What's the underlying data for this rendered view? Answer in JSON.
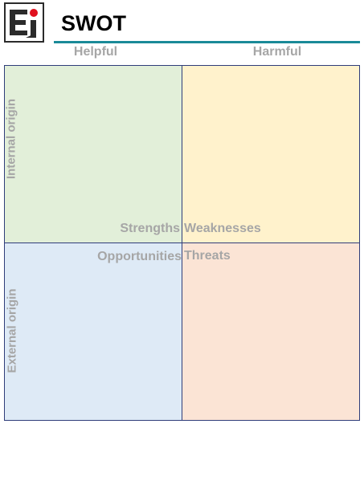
{
  "header": {
    "title": "SWOT",
    "accent_color": "#1a8a98",
    "logo_icon": "ei-logo-icon"
  },
  "columns": {
    "helpful": "Helpful",
    "harmful": "Harmful"
  },
  "rows": {
    "internal": "Internal origin",
    "external": "External origin"
  },
  "quadrants": {
    "strengths": {
      "label": "Strengths",
      "color": "#e2efd9"
    },
    "weaknesses": {
      "label": "Weaknesses",
      "color": "#fff2cc"
    },
    "opportunities": {
      "label": "Opportunities",
      "color": "#deeaf6"
    },
    "threats": {
      "label": "Threats",
      "color": "#fbe4d5"
    }
  }
}
